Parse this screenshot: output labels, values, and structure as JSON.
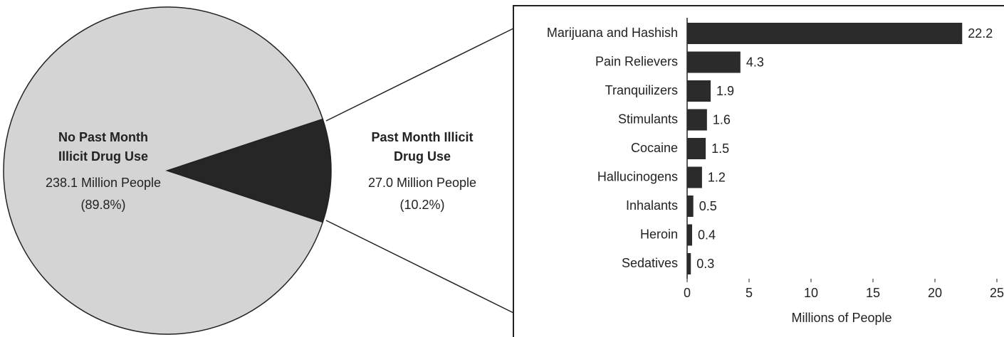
{
  "chart_data": [
    {
      "type": "pie",
      "categories": [
        "No Past Month Illicit Drug Use",
        "Past Month Illicit Drug Use"
      ],
      "values": [
        89.8,
        10.2
      ],
      "value_labels": [
        "(89.8%)",
        "(10.2%)"
      ],
      "people": [
        238.1,
        27.0
      ],
      "people_labels": [
        "238.1 Million People",
        "27.0 Million People"
      ],
      "colors": [
        "#d4d4d4",
        "#262626"
      ]
    },
    {
      "type": "bar",
      "orientation": "horizontal",
      "categories": [
        "Marijuana and Hashish",
        "Pain Relievers",
        "Tranquilizers",
        "Stimulants",
        "Cocaine",
        "Hallucinogens",
        "Inhalants",
        "Heroin",
        "Sedatives"
      ],
      "values": [
        22.2,
        4.3,
        1.9,
        1.6,
        1.5,
        1.2,
        0.5,
        0.4,
        0.3
      ],
      "xlim": [
        0,
        25
      ],
      "xticks": [
        0,
        5,
        10,
        15,
        20,
        25
      ],
      "xlabel": "Millions of People",
      "color": "#2b2b2b"
    }
  ]
}
